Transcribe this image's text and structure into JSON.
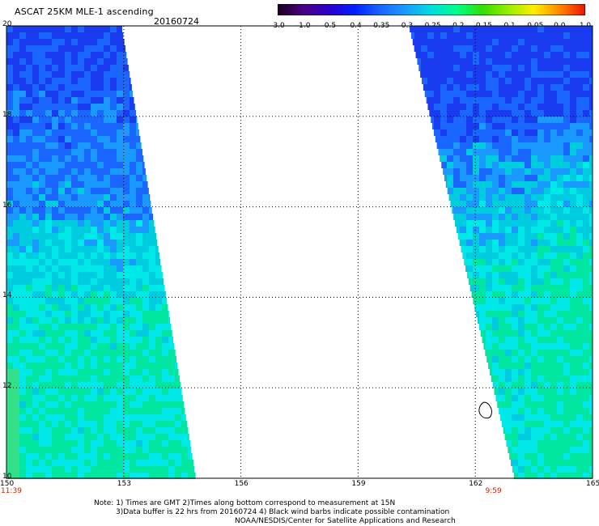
{
  "header": {
    "title": "ASCAT 25KM MLE-1 ascending",
    "date": "20160724"
  },
  "colorbar": {
    "labels": [
      "-3.0",
      "-1.0",
      "-0.5",
      "-0.4",
      "-0.35",
      "-0.3",
      "-0.25",
      "-0.2",
      "-0.15",
      "-0.1",
      "-0.05",
      "0.0",
      "1.0"
    ],
    "colors": [
      "#1a001a",
      "#4b0082",
      "#2b00cc",
      "#0020ff",
      "#1a66ff",
      "#1a9cff",
      "#00dddd",
      "#00ff88",
      "#33dd00",
      "#99ee00",
      "#ffee00",
      "#ff8800",
      "#ee1100"
    ]
  },
  "map": {
    "lon_min": 150,
    "lon_max": 165,
    "lat_min": 10,
    "lat_max": 20,
    "lon_ticks": [
      "150",
      "153",
      "156",
      "159",
      "162",
      "165"
    ],
    "lat_ticks": [
      "20",
      "18",
      "16",
      "14",
      "12",
      "10"
    ],
    "time_labels": [
      {
        "lon": 150,
        "text": "11:39"
      },
      {
        "lon": 162.4,
        "text": "9:59"
      }
    ],
    "swaths": [
      {
        "id": "west",
        "lon_left": 150,
        "lon_right_top": 152.95,
        "lon_right_bottom": 154.85
      },
      {
        "id": "east",
        "lon_left_top": 160.3,
        "lon_left_bottom": 163.0,
        "lon_right": 165
      }
    ]
  },
  "notes": {
    "line1": "Note: 1) Times are GMT 2)Times along bottom correspond to measurement at 15N",
    "line2": "3)Data buffer is 22 hrs from 20160724 4) Black wind barbs indicate possible contamination",
    "line3": "NOAA/NESDIS/Center for Satellite Applications and Research"
  },
  "style": {
    "grid_color": "#000000",
    "high_value_color": "#1a33ff",
    "mid_value_color": "#00e5e5",
    "time_color": "#cc2200"
  }
}
